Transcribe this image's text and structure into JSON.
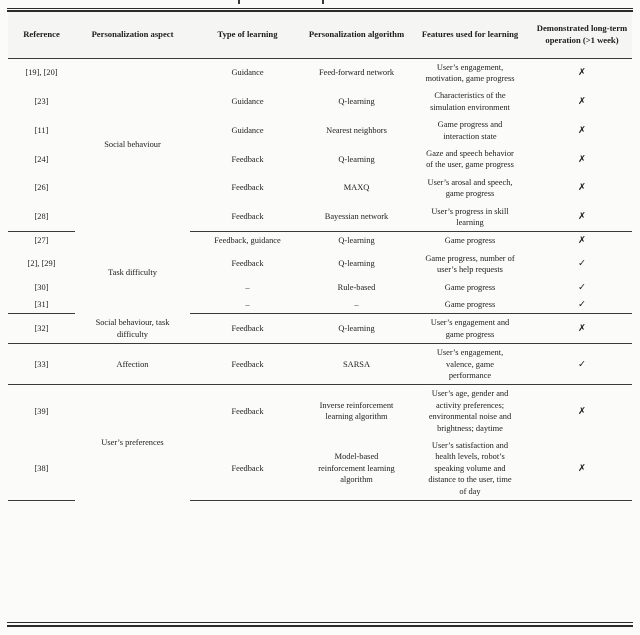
{
  "icons": {
    "yes": "✓",
    "no": "✗"
  },
  "colors": {
    "rule": "#2b2b2b",
    "text": "#1c1c1c",
    "header_bg": "#f5f5f4",
    "page_bg": "#fbfbfa"
  },
  "table": {
    "columns": [
      "Reference",
      "Personalization aspect",
      "Type of learning",
      "Personalization algorithm",
      "Features used for learning",
      "Demonstrated long-term operation (>1 week)"
    ],
    "groups": [
      {
        "aspect": "Social behaviour",
        "rows": [
          {
            "reference": "[19], [20]",
            "type": "Guidance",
            "algorithm": "Feed-forward network",
            "features": "User’s engagement, motivation, game progress",
            "long_term": "no"
          },
          {
            "reference": "[23]",
            "type": "Guidance",
            "algorithm": "Q-learning",
            "features": "Characteristics of the simulation environment",
            "long_term": "no"
          },
          {
            "reference": "[11]",
            "type": "Guidance",
            "algorithm": "Nearest neighbors",
            "features": "Game progress and interaction state",
            "long_term": "no"
          },
          {
            "reference": "[24]",
            "type": "Feedback",
            "algorithm": "Q-learning",
            "features": "Gaze and speech behavior of the user, game progress",
            "long_term": "no"
          },
          {
            "reference": "[26]",
            "type": "Feedback",
            "algorithm": "MAXQ",
            "features": "User’s arosal and speech, game progress",
            "long_term": "no"
          },
          {
            "reference": "[28]",
            "type": "Feedback",
            "algorithm": "Bayessian network",
            "features": "User’s progress in skill learning",
            "long_term": "no"
          }
        ]
      },
      {
        "aspect": "Task difficulty",
        "rows": [
          {
            "reference": "[27]",
            "type": "Feedback, guidance",
            "algorithm": "Q-learning",
            "features": "Game progress",
            "long_term": "no"
          },
          {
            "reference": "[2], [29]",
            "type": "Feedback",
            "algorithm": "Q-learning",
            "features": "Game progress, number of user’s help requests",
            "long_term": "yes"
          },
          {
            "reference": "[30]",
            "type": "–",
            "algorithm": "Rule-based",
            "features": "Game progress",
            "long_term": "yes"
          },
          {
            "reference": "[31]",
            "type": "–",
            "algorithm": "–",
            "features": "Game progress",
            "long_term": "yes"
          }
        ]
      },
      {
        "aspect": "Social behaviour, task difficulty",
        "rows": [
          {
            "reference": "[32]",
            "type": "Feedback",
            "algorithm": "Q-learning",
            "features": "User’s engagement and game progress",
            "long_term": "no"
          }
        ]
      },
      {
        "aspect": "Affection",
        "rows": [
          {
            "reference": "[33]",
            "type": "Feedback",
            "algorithm": "SARSA",
            "features": "User’s engagement, valence, game performance",
            "long_term": "yes"
          }
        ]
      },
      {
        "aspect": "User’s preferences",
        "rows": [
          {
            "reference": "[39]",
            "type": "Feedback",
            "algorithm": "Inverse reinforcement learning algorithm",
            "features": "User’s age, gender and activity preferences; environmental noise and brightness; daytime",
            "long_term": "no"
          },
          {
            "reference": "[38]",
            "type": "Feedback",
            "algorithm": "Model-based reinforcement learning algorithm",
            "features": "User’s satisfaction and health levels, robot’s speaking volume and distance to the user, time of day",
            "long_term": "no"
          }
        ]
      }
    ]
  }
}
